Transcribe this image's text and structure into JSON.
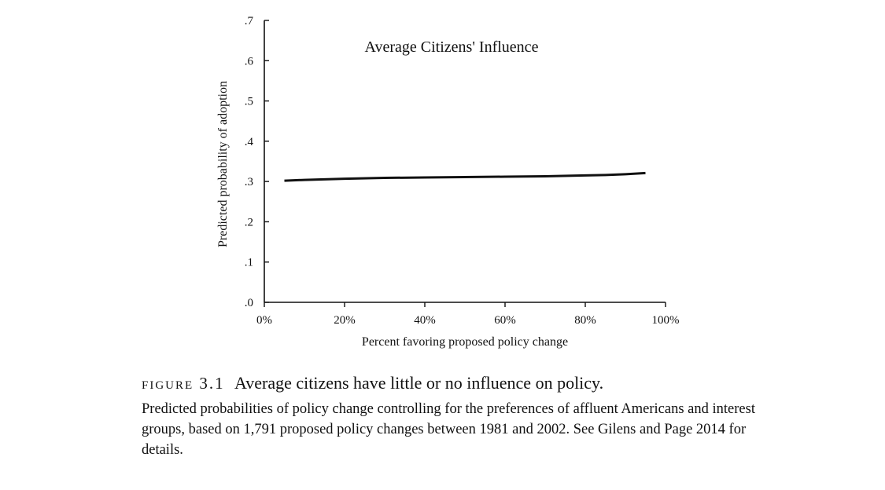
{
  "chart_data": {
    "type": "line",
    "title": "Average Citizens' Influence",
    "xlabel": "Percent favoring proposed policy change",
    "ylabel": "Predicted probability of adoption",
    "xlim": [
      0,
      100
    ],
    "ylim": [
      0,
      0.7
    ],
    "x_ticks": [
      0,
      20,
      40,
      60,
      80,
      100
    ],
    "x_tick_labels": [
      "0%",
      "20%",
      "40%",
      "60%",
      "80%",
      "100%"
    ],
    "y_ticks": [
      0,
      0.1,
      0.2,
      0.3,
      0.4,
      0.5,
      0.6,
      0.7
    ],
    "y_tick_labels": [
      ".0",
      ".1",
      ".2",
      ".3",
      ".4",
      ".5",
      ".6",
      ".7"
    ],
    "grid": false,
    "line_color": "#111111",
    "series": [
      {
        "x": [
          5,
          10,
          20,
          30,
          40,
          50,
          60,
          70,
          80,
          85,
          90,
          95
        ],
        "y": [
          0.302,
          0.304,
          0.307,
          0.309,
          0.31,
          0.311,
          0.312,
          0.313,
          0.315,
          0.316,
          0.318,
          0.321
        ]
      }
    ]
  },
  "caption": {
    "figure_label": "figure 3.1",
    "title": "Average citizens have little or no influence on policy.",
    "body": "Predicted probabilities of policy change controlling for the preferences of affluent Americans and interest groups, based on 1,791 proposed policy changes between 1981 and 2002. See Gilens and Page 2014 for details."
  }
}
